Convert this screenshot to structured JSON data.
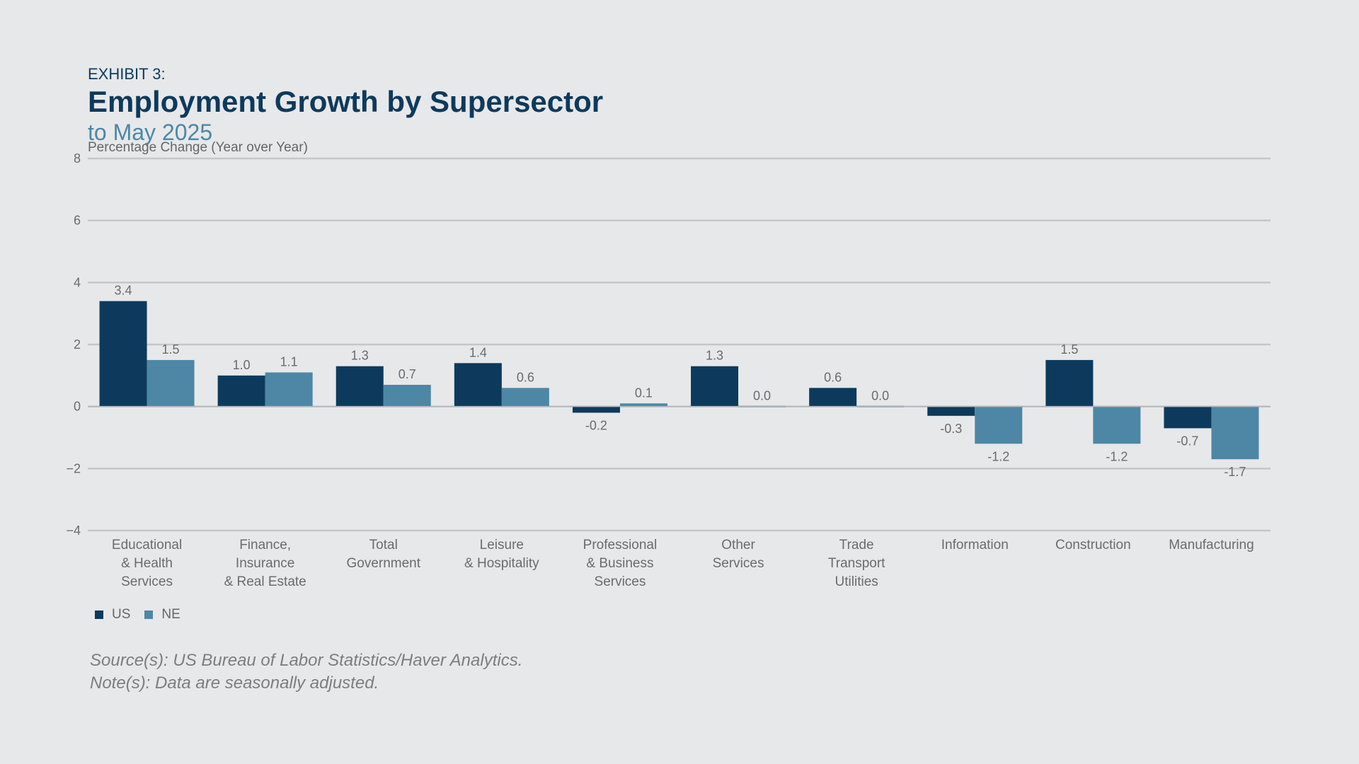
{
  "header": {
    "exhibit": "EXHIBIT 3:",
    "title": "Employment Growth by Supersector",
    "subtitle": "to May 2025"
  },
  "colors": {
    "us": "#0d3a5c",
    "ne": "#4d87a5",
    "grid": "#c4c6c9",
    "text": "#6b6b6b"
  },
  "chart_data": {
    "type": "bar",
    "ylabel": "Percentage Change (Year over Year)",
    "ylim": [
      -4,
      8
    ],
    "yticks": [
      "8",
      "6",
      "4",
      "2",
      "0",
      "−2",
      "−4"
    ],
    "ytick_values": [
      8,
      6,
      4,
      2,
      0,
      -2,
      -4
    ],
    "grid": true,
    "legend_position": "bottom-left",
    "categories": [
      [
        "Educational",
        "& Health",
        "Services"
      ],
      [
        "Finance,",
        "Insurance",
        "& Real Estate"
      ],
      [
        "Total",
        "Government"
      ],
      [
        "Leisure",
        "& Hospitality"
      ],
      [
        "Professional",
        "& Business",
        "Services"
      ],
      [
        "Other",
        "Services"
      ],
      [
        "Trade",
        "Transport",
        "Utilities"
      ],
      [
        "Information"
      ],
      [
        "Construction"
      ],
      [
        "Manufacturing"
      ]
    ],
    "series": [
      {
        "name": "US",
        "values": [
          3.4,
          1.0,
          1.3,
          1.4,
          -0.2,
          1.3,
          0.6,
          -0.3,
          1.5,
          -0.7
        ],
        "labels": [
          "3.4",
          "1.0",
          "1.3",
          "1.4",
          "-0.2",
          "1.3",
          "0.6",
          "-0.3",
          "1.5",
          "-0.7"
        ]
      },
      {
        "name": "NE",
        "values": [
          1.5,
          1.1,
          0.7,
          0.6,
          0.1,
          0.0,
          0.0,
          -1.2,
          -1.2,
          -1.7
        ],
        "labels": [
          "1.5",
          "1.1",
          "0.7",
          "0.6",
          "0.1",
          "0.0",
          "0.0",
          "-1.2",
          "-1.2",
          "-1.7"
        ]
      }
    ]
  },
  "legend": {
    "us_label": "US",
    "ne_label": "NE"
  },
  "footnotes": {
    "source": "Source(s): US Bureau of Labor Statistics/Haver Analytics.",
    "note": "Note(s): Data are seasonally adjusted."
  }
}
